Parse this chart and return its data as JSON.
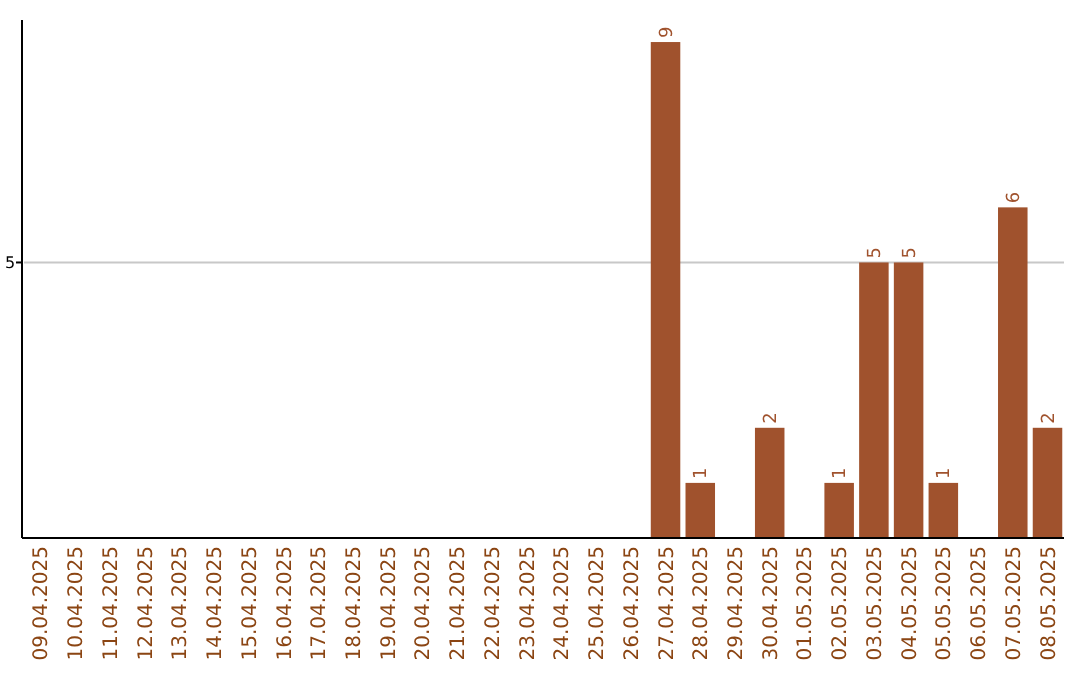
{
  "chart_data": {
    "type": "bar",
    "categories": [
      "09.04.2025",
      "10.04.2025",
      "11.04.2025",
      "12.04.2025",
      "13.04.2025",
      "14.04.2025",
      "15.04.2025",
      "16.04.2025",
      "17.04.2025",
      "18.04.2025",
      "19.04.2025",
      "20.04.2025",
      "21.04.2025",
      "22.04.2025",
      "23.04.2025",
      "24.04.2025",
      "25.04.2025",
      "26.04.2025",
      "27.04.2025",
      "28.04.2025",
      "29.04.2025",
      "30.04.2025",
      "01.05.2025",
      "02.05.2025",
      "03.05.2025",
      "04.05.2025",
      "05.05.2025",
      "06.05.2025",
      "07.05.2025",
      "08.05.2025"
    ],
    "values": [
      null,
      null,
      null,
      null,
      null,
      null,
      null,
      null,
      null,
      null,
      null,
      null,
      null,
      null,
      null,
      null,
      null,
      null,
      9,
      1,
      null,
      2,
      null,
      1,
      5,
      5,
      1,
      null,
      6,
      2
    ],
    "value_labels": [
      null,
      null,
      null,
      null,
      null,
      null,
      null,
      null,
      null,
      null,
      null,
      null,
      null,
      null,
      null,
      null,
      null,
      null,
      "9",
      "1",
      null,
      "2",
      null,
      "1",
      "5",
      "5",
      "1",
      null,
      "6",
      "2"
    ],
    "color": "#a0522d",
    "ylim": [
      0,
      9.4
    ],
    "yticks": [
      5
    ],
    "grid": "y"
  }
}
